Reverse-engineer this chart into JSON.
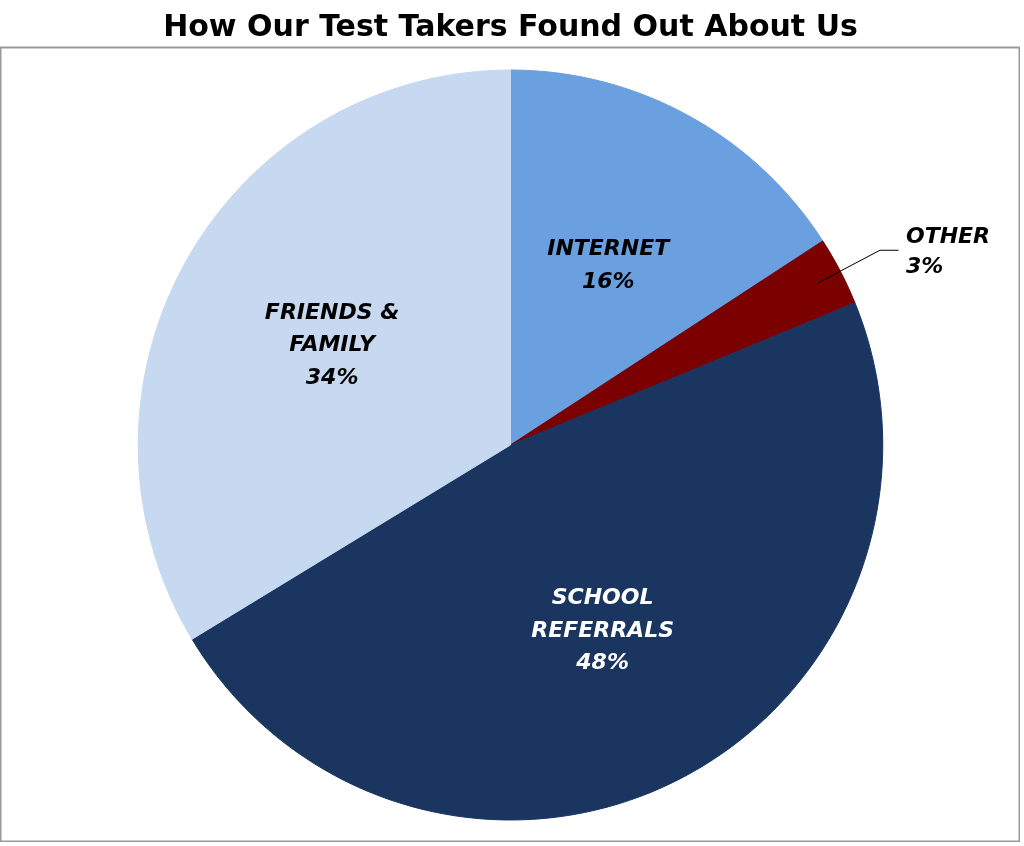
{
  "chart_data": {
    "type": "pie",
    "title": "How Our Test Takers Found Out About Us",
    "categories": [
      "INTERNET",
      "OTHER",
      "SCHOOL REFERRALS",
      "FRIENDS & FAMILY"
    ],
    "values": [
      16,
      3,
      48,
      34
    ],
    "colors": [
      "#6a9fe0",
      "#7b0000",
      "#1a3660",
      "#c6d9f0"
    ],
    "value_labels": [
      "16%",
      "3%",
      "48%",
      "34%"
    ]
  }
}
